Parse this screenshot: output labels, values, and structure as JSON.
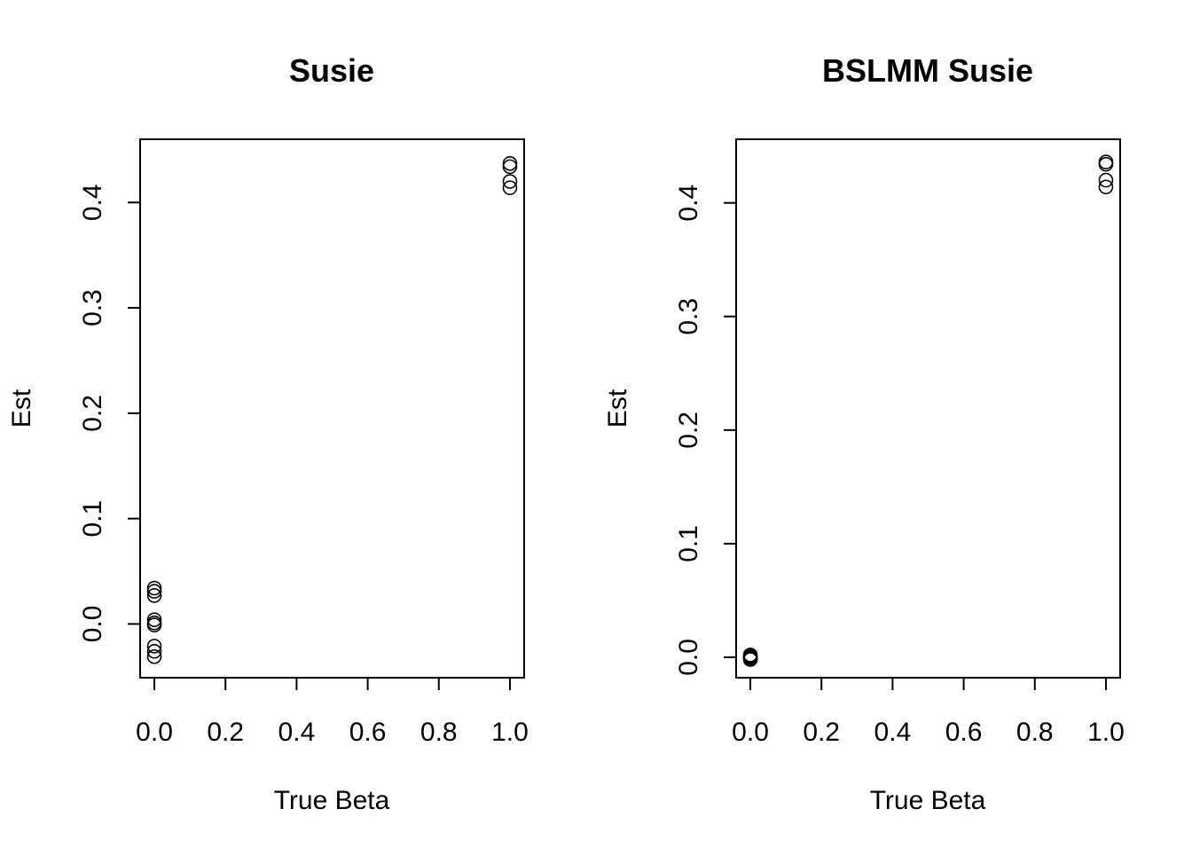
{
  "chart_data": [
    {
      "type": "scatter",
      "title": "Susie",
      "xlabel": "True Beta",
      "ylabel": "Est",
      "xlim": [
        -0.04,
        1.04
      ],
      "ylim": [
        -0.051,
        0.46
      ],
      "xticks": [
        0.0,
        0.2,
        0.4,
        0.6,
        0.8,
        1.0
      ],
      "xtick_labels": [
        "0.0",
        "0.2",
        "0.4",
        "0.6",
        "0.8",
        "1.0"
      ],
      "yticks": [
        0.0,
        0.1,
        0.2,
        0.3,
        0.4
      ],
      "ytick_labels": [
        "0.0",
        "0.1",
        "0.2",
        "0.3",
        "0.4"
      ],
      "grid": false,
      "points": [
        {
          "x": 0,
          "y": 0.034
        },
        {
          "x": 0,
          "y": 0.031
        },
        {
          "x": 0,
          "y": 0.027
        },
        {
          "x": 0,
          "y": 0.004
        },
        {
          "x": 0,
          "y": 0.001
        },
        {
          "x": 0,
          "y": -0.001
        },
        {
          "x": 0,
          "y": -0.021
        },
        {
          "x": 0,
          "y": -0.026
        },
        {
          "x": 0,
          "y": -0.031
        },
        {
          "x": 1,
          "y": 0.437
        },
        {
          "x": 1,
          "y": 0.434
        },
        {
          "x": 1,
          "y": 0.42
        },
        {
          "x": 1,
          "y": 0.414
        }
      ]
    },
    {
      "type": "scatter",
      "title": "BSLMM Susie",
      "xlabel": "True Beta",
      "ylabel": "Est",
      "xlim": [
        -0.04,
        1.04
      ],
      "ylim": [
        -0.018,
        0.456
      ],
      "xticks": [
        0.0,
        0.2,
        0.4,
        0.6,
        0.8,
        1.0
      ],
      "xtick_labels": [
        "0.0",
        "0.2",
        "0.4",
        "0.6",
        "0.8",
        "1.0"
      ],
      "yticks": [
        0.0,
        0.1,
        0.2,
        0.3,
        0.4
      ],
      "ytick_labels": [
        "0.0",
        "0.1",
        "0.2",
        "0.3",
        "0.4"
      ],
      "grid": false,
      "points": [
        {
          "x": 0,
          "y": 0.002
        },
        {
          "x": 0,
          "y": 0.001
        },
        {
          "x": 0,
          "y": 0.0
        },
        {
          "x": 0,
          "y": -0.001
        },
        {
          "x": 0,
          "y": -0.002
        },
        {
          "x": 1,
          "y": 0.436
        },
        {
          "x": 1,
          "y": 0.434
        },
        {
          "x": 1,
          "y": 0.42
        },
        {
          "x": 1,
          "y": 0.414
        }
      ]
    }
  ]
}
